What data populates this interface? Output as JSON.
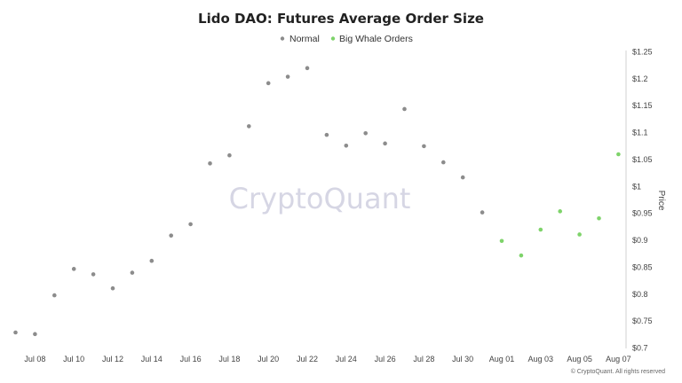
{
  "chart_data": {
    "type": "scatter",
    "title": "Lido DAO: Futures Average Order Size",
    "ylabel": "Price",
    "xlabel": "",
    "ylim": [
      0.7,
      1.25
    ],
    "y_ticks": [
      "$0.7",
      "$0.75",
      "$0.8",
      "$0.85",
      "$0.9",
      "$0.95",
      "$1",
      "$1.05",
      "$1.1",
      "$1.15",
      "$1.2",
      "$1.25"
    ],
    "x_ticks": [
      "Jul 08",
      "Jul 10",
      "Jul 12",
      "Jul 14",
      "Jul 16",
      "Jul 18",
      "Jul 20",
      "Jul 22",
      "Jul 24",
      "Jul 26",
      "Jul 28",
      "Jul 30",
      "Aug 01",
      "Aug 03",
      "Aug 05",
      "Aug 07"
    ],
    "legend_position": "top-center",
    "grid": false,
    "series": [
      {
        "name": "Normal",
        "color": "#8c8c8c",
        "points": [
          {
            "x": "2024-07-07",
            "y": 0.728
          },
          {
            "x": "2024-07-08",
            "y": 0.725
          },
          {
            "x": "2024-07-09",
            "y": 0.797
          },
          {
            "x": "2024-07-10",
            "y": 0.846
          },
          {
            "x": "2024-07-11",
            "y": 0.836
          },
          {
            "x": "2024-07-12",
            "y": 0.81
          },
          {
            "x": "2024-07-13",
            "y": 0.839
          },
          {
            "x": "2024-07-14",
            "y": 0.861
          },
          {
            "x": "2024-07-15",
            "y": 0.908
          },
          {
            "x": "2024-07-16",
            "y": 0.929
          },
          {
            "x": "2024-07-17",
            "y": 1.042
          },
          {
            "x": "2024-07-18",
            "y": 1.057
          },
          {
            "x": "2024-07-19",
            "y": 1.111
          },
          {
            "x": "2024-07-20",
            "y": 1.191
          },
          {
            "x": "2024-07-21",
            "y": 1.203
          },
          {
            "x": "2024-07-22",
            "y": 1.219
          },
          {
            "x": "2024-07-23",
            "y": 1.095
          },
          {
            "x": "2024-07-24",
            "y": 1.075
          },
          {
            "x": "2024-07-25",
            "y": 1.098
          },
          {
            "x": "2024-07-26",
            "y": 1.079
          },
          {
            "x": "2024-07-27",
            "y": 1.143
          },
          {
            "x": "2024-07-28",
            "y": 1.074
          },
          {
            "x": "2024-07-29",
            "y": 1.044
          },
          {
            "x": "2024-07-30",
            "y": 1.016
          },
          {
            "x": "2024-07-31",
            "y": 0.951
          }
        ]
      },
      {
        "name": "Big Whale Orders",
        "color": "#7ed36a",
        "points": [
          {
            "x": "2024-08-01",
            "y": 0.898
          },
          {
            "x": "2024-08-02",
            "y": 0.871
          },
          {
            "x": "2024-08-03",
            "y": 0.919
          },
          {
            "x": "2024-08-04",
            "y": 0.953
          },
          {
            "x": "2024-08-05",
            "y": 0.91
          },
          {
            "x": "2024-08-06",
            "y": 0.94
          },
          {
            "x": "2024-08-07",
            "y": 1.059
          }
        ]
      }
    ]
  },
  "watermark": "CryptoQuant",
  "copyright": "© CryptoQuant. All rights reserved"
}
